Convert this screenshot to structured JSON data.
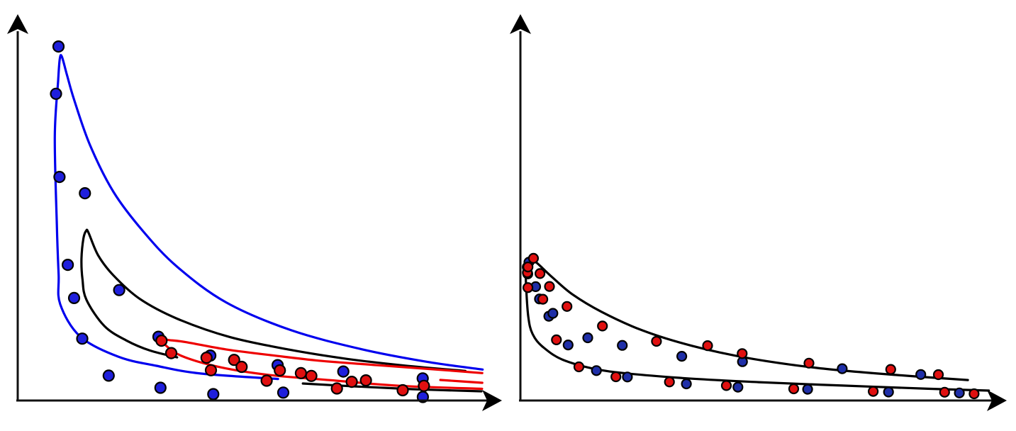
{
  "chart_data": [
    {
      "type": "scatter",
      "panel": "left",
      "colors": {
        "blue": "#0000ee",
        "red": "#ee0000",
        "black": "#000000",
        "blue_marker": "#1f1fdc",
        "red_marker": "#e01010"
      },
      "xlim": [
        0,
        100
      ],
      "ylim": [
        0,
        100
      ],
      "curves": [
        {
          "color": "blue",
          "x": [
            56.05,
            39.52,
            29.87,
            21.69,
            13.46,
            9.15,
            8.81,
            8.42,
            7.99,
            8.7,
            9.05,
            9.5,
            10.6,
            12.21,
            15.6,
            20.65,
            27.1,
            34.38,
            44.86,
            58.85,
            74.15,
            88.29,
            100.1
          ],
          "y": [
            6.08,
            7.59,
            9.79,
            12.35,
            18.05,
            27.18,
            35.54,
            49.44,
            74.53,
            90.19,
            96.36,
            97.05,
            91.87,
            84.58,
            71.95,
            58.78,
            47.6,
            37.67,
            27.7,
            19.85,
            14.44,
            10.89,
            8.74
          ]
        },
        {
          "color": "black",
          "x": [
            34.32,
            28.45,
            23.39,
            18.66,
            14.79,
            13.94,
            13.73,
            14.16,
            14.75,
            15.24,
            17.32,
            20.56,
            26.28,
            34.34,
            45.66,
            58.46,
            71.05,
            83.47,
            96.4
          ],
          "y": [
            12.18,
            14.11,
            16.95,
            21.01,
            28.45,
            34.27,
            40.03,
            45.77,
            47.91,
            47.37,
            40.96,
            35.37,
            28.69,
            23.09,
            17.91,
            14.36,
            11.73,
            9.84,
            8.34
          ]
        },
        {
          "color": "black",
          "x": [
            61.4,
            72.36,
            84.98,
            99.86
          ],
          "y": [
            4.79,
            3.99,
            3.21,
            2.59
          ]
        },
        {
          "color": "red",
          "x": [
            99.99,
            82.44,
            68.58,
            54.46,
            43.46,
            35.11,
            31.36,
            30.45,
            30.59,
            32.65,
            36.28,
            44.86,
            54.77,
            64.86,
            77.51,
            92.46,
            100.03
          ],
          "y": [
            3.3,
            4.14,
            5.61,
            7.16,
            9.44,
            12.68,
            16.13,
            17.13,
            17.33,
            17.05,
            16.46,
            14.43,
            12.76,
            11.25,
            9.96,
            8.52,
            7.74
          ]
        },
        {
          "color": "red",
          "x": [
            100.03,
            91.0
          ],
          "y": [
            5.0,
            5.8
          ]
        }
      ],
      "points": [
        {
          "color": "blue",
          "x": [
            8.78,
            8.25,
            8.99,
            10.78,
            13.89,
            19.59,
            30.73,
            14.47,
            21.84,
            30.3,
            41.47,
            55.97,
            70.1,
            87.2,
            57.18,
            87.24,
            42.11,
            12.14
          ],
          "y": [
            99.88,
            86.55,
            63.07,
            38.27,
            17.46,
            7.03,
            3.61,
            58.47,
            31.16,
            17.99,
            12.68,
            9.98,
            8.17,
            6.25,
            2.24,
            1.01,
            1.79,
            28.91
          ]
        },
        {
          "color": "red",
          "x": [
            30.96,
            33.05,
            41.6,
            46.6,
            53.61,
            60.97,
            68.73,
            74.98,
            82.9,
            87.46,
            71.93,
            63.22,
            56.45,
            48.22,
            40.66
          ],
          "y": [
            16.89,
            13.39,
            8.54,
            11.46,
            5.61,
            7.73,
            3.39,
            5.67,
            2.89,
            4.15,
            5.28,
            6.95,
            8.51,
            9.49,
            12.07
          ]
        }
      ]
    },
    {
      "type": "scatter",
      "panel": "right",
      "colors": {
        "line": "#000000",
        "navy": "#1f2fa8",
        "red": "#e01010"
      },
      "xlim": [
        0,
        100
      ],
      "ylim": [
        0,
        100
      ],
      "curves": [
        {
          "color": "line",
          "x": [
            100.71,
            87.63,
            69.28,
            51.2,
            34.87,
            18.73,
            9.64,
            4.94,
            2.62,
            1.68,
            1.19,
            1.21,
            1.58,
            2.29,
            3.76,
            6.86,
            11.15,
            17.38,
            26.17,
            36.93,
            49.23,
            63.9,
            80.69,
            96.2
          ],
          "y": [
            2.81,
            3.33,
            4.22,
            5.18,
            6.35,
            8.28,
            11.22,
            15.0,
            18.76,
            23.83,
            33.4,
            37.21,
            39.49,
            40.04,
            38.56,
            34.76,
            29.99,
            25.06,
            19.81,
            15.41,
            11.93,
            9.17,
            7.22,
            5.77
          ]
        }
      ],
      "points": [
        {
          "color": "navy",
          "x": [
            1.48,
            1.59,
            4.1,
            6.12,
            10.26,
            16.34,
            23.0,
            35.68,
            46.77,
            61.76,
            79.15,
            94.38,
            86.08,
            69.19,
            47.74,
            34.69,
            21.91,
            14.48,
            6.98,
            3.27,
            1.83
          ],
          "y": [
            37.65,
            35.73,
            28.66,
            23.77,
            15.69,
            8.45,
            6.64,
            4.71,
            3.78,
            3.18,
            2.39,
            2.14,
            7.34,
            8.97,
            10.96,
            12.47,
            15.56,
            17.7,
            24.6,
            32.12,
            39.01
          ]
        },
        {
          "color": "red",
          "x": [
            1.49,
            1.62,
            1.63,
            4.82,
            7.74,
            12.57,
            20.53,
            32.05,
            44.29,
            58.77,
            75.86,
            91.21,
            97.55,
            89.86,
            79.62,
            62.05,
            47.68,
            40.24,
            29.26,
            17.63,
            10.02,
            6.25,
            4.21,
            2.8
          ],
          "y": [
            36.11,
            31.86,
            37.69,
            28.57,
            17.12,
            9.49,
            6.7,
            5.24,
            4.22,
            3.3,
            2.58,
            2.35,
            1.91,
            7.29,
            8.77,
            10.55,
            13.24,
            15.47,
            16.7,
            21.01,
            26.55,
            32.18,
            35.81,
            40.12
          ]
        }
      ]
    }
  ]
}
